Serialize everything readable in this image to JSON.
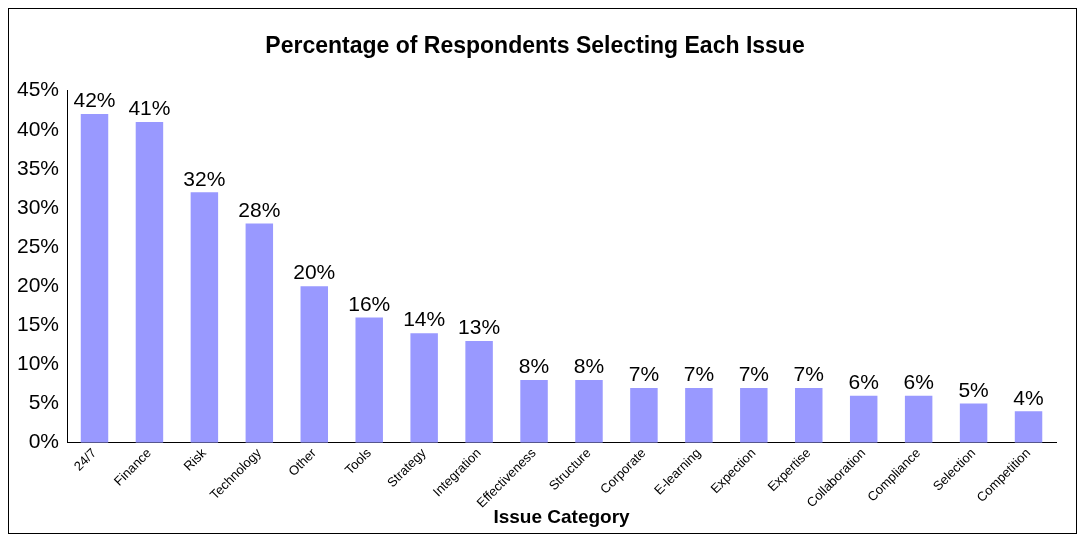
{
  "chart_data": {
    "type": "bar",
    "title": "Percentage of Respondents Selecting Each Issue",
    "xlabel": "Issue Category",
    "categories": [
      "24/7",
      "Finance",
      "Risk",
      "Technology",
      "Other",
      "Tools",
      "Strategy",
      "Integration",
      "Effectiveness",
      "Structure",
      "Corporate",
      "E-learning",
      "Expection",
      "Expertise",
      "Collaboration",
      "Compliance",
      "Selection",
      "Competition"
    ],
    "values": [
      42,
      41,
      32,
      28,
      20,
      16,
      14,
      13,
      8,
      8,
      7,
      7,
      7,
      7,
      6,
      6,
      5,
      4
    ],
    "value_labels": [
      "42%",
      "41%",
      "32%",
      "28%",
      "20%",
      "16%",
      "14%",
      "13%",
      "8%",
      "8%",
      "7%",
      "7%",
      "7%",
      "7%",
      "6%",
      "6%",
      "5%",
      "4%"
    ],
    "color": "#9999ff",
    "ylim": [
      0,
      45
    ],
    "yticks": [
      {
        "value": 0,
        "label": "0%"
      },
      {
        "value": 5,
        "label": "5%"
      },
      {
        "value": 10,
        "label": "10%"
      },
      {
        "value": 15,
        "label": "15%"
      },
      {
        "value": 20,
        "label": "20%"
      },
      {
        "value": 25,
        "label": "25%"
      },
      {
        "value": 30,
        "label": "30%"
      },
      {
        "value": 35,
        "label": "35%"
      },
      {
        "value": 40,
        "label": "40%"
      },
      {
        "value": 45,
        "label": "45%"
      }
    ],
    "grid": false,
    "legend": false
  }
}
